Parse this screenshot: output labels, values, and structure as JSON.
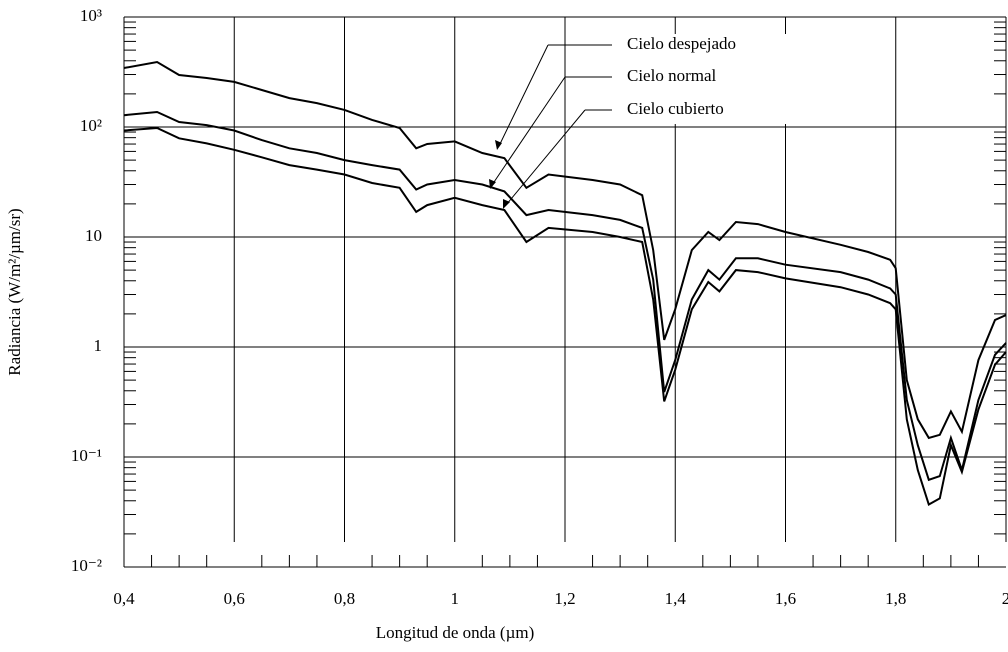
{
  "chart_data": {
    "type": "line",
    "xlabel": "Longitud de onda   (µm)",
    "ylabel": "Radiancia (W/m²/µm/sr)",
    "log_y": true,
    "grid": true,
    "xlim": [
      0.4,
      2
    ],
    "xticks": [
      {
        "value": 0.4,
        "label": "0,4"
      },
      {
        "value": 0.6,
        "label": "0,6"
      },
      {
        "value": 0.8,
        "label": "0,8"
      },
      1,
      {
        "value": 1.2,
        "label": "1,2"
      },
      {
        "value": 1.4,
        "label": "1,4"
      },
      {
        "value": 1.6,
        "label": "1,6"
      },
      {
        "value": 1.8,
        "label": "1,8"
      },
      2
    ],
    "ylim": [
      0.01,
      1000
    ],
    "yticks": [
      {
        "value": 0.01,
        "label": "10⁻²"
      },
      {
        "value": 0.1,
        "label": "10⁻¹"
      },
      1,
      10,
      {
        "value": 100,
        "label": "10²"
      },
      {
        "value": 1000,
        "label": "10³"
      }
    ],
    "x": [
      0.4,
      0.46,
      0.5,
      0.55,
      0.6,
      0.65,
      0.7,
      0.75,
      0.8,
      0.85,
      0.9,
      0.93,
      0.95,
      1.0,
      1.05,
      1.09,
      1.13,
      1.17,
      1.25,
      1.3,
      1.34,
      1.36,
      1.38,
      1.4,
      1.43,
      1.46,
      1.48,
      1.51,
      1.55,
      1.6,
      1.7,
      1.75,
      1.79,
      1.8,
      1.82,
      1.84,
      1.86,
      1.88,
      1.9,
      1.92,
      1.95,
      1.98,
      2.0
    ],
    "series": [
      {
        "name": "Cielo despejado",
        "color": "#000000",
        "values": [
          344,
          390,
          297,
          279,
          257,
          217,
          183,
          165,
          143,
          116,
          98,
          64,
          70,
          74,
          58,
          52,
          28,
          37,
          33,
          30,
          24,
          7.6,
          1.16,
          2.2,
          7.6,
          11.1,
          9.4,
          13.7,
          13.1,
          11.1,
          8.5,
          7.3,
          6.2,
          5.2,
          0.5,
          0.22,
          0.149,
          0.159,
          0.26,
          0.17,
          0.76,
          1.76,
          1.95
        ]
      },
      {
        "name": "Cielo normal",
        "color": "#000000",
        "values": [
          128,
          137,
          111,
          104,
          93,
          76,
          64,
          58,
          50,
          45,
          41,
          27,
          30,
          33,
          30,
          26,
          15.8,
          17.6,
          15.8,
          14.3,
          12.1,
          4.1,
          0.39,
          0.76,
          2.7,
          5.0,
          4.1,
          6.4,
          6.4,
          5.6,
          4.8,
          4.1,
          3.4,
          3.0,
          0.33,
          0.128,
          0.062,
          0.067,
          0.149,
          0.076,
          0.33,
          0.85,
          1.09
        ]
      },
      {
        "name": "Cielo cubierto",
        "color": "#000000",
        "values": [
          93,
          98,
          79,
          71,
          62,
          53,
          45,
          41,
          37,
          31,
          28,
          16.9,
          19.5,
          22.7,
          19.5,
          17.6,
          9.0,
          12.1,
          11.1,
          10,
          9.0,
          2.7,
          0.32,
          0.62,
          2.2,
          3.9,
          3.2,
          5.0,
          4.8,
          4.2,
          3.5,
          3.0,
          2.5,
          2.2,
          0.22,
          0.076,
          0.037,
          0.042,
          0.128,
          0.073,
          0.27,
          0.69,
          0.9
        ]
      }
    ]
  }
}
